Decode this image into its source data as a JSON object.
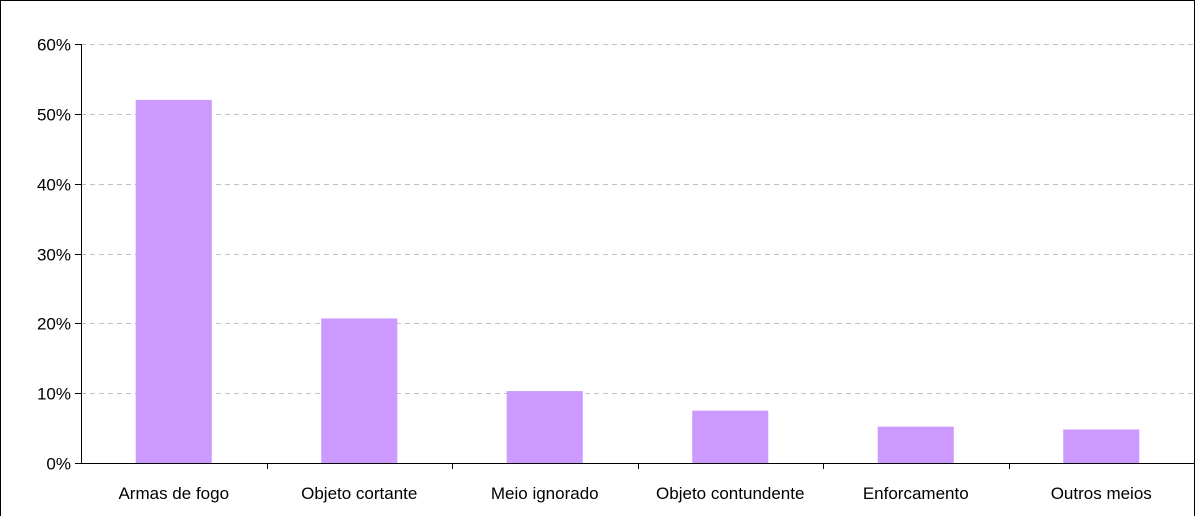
{
  "chart_data": {
    "type": "bar",
    "categories": [
      "Armas de fogo",
      "Objeto cortante",
      "Meio ignorado",
      "Objeto contundente",
      "Enforcamento",
      "Outros meios"
    ],
    "values": [
      52,
      20.7,
      10.3,
      7.5,
      5.2,
      4.8
    ],
    "title": "",
    "xlabel": "",
    "ylabel": "",
    "ylim": [
      0,
      60
    ],
    "yticks": [
      "0%",
      "10%",
      "20%",
      "30%",
      "40%",
      "50%",
      "60%"
    ],
    "y_tick_values": [
      0,
      10,
      20,
      30,
      40,
      50,
      60
    ],
    "grid": true,
    "grid_style": "dashed",
    "legend": "none",
    "colors": {
      "bar": "#cc99ff",
      "grid": "#c0c0c0",
      "axis": "#000000",
      "text": "#000000"
    }
  }
}
